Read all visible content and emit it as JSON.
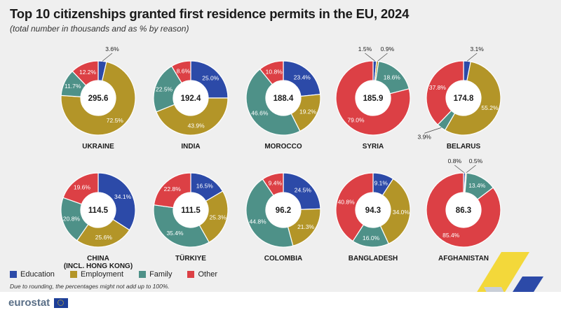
{
  "title": "Top 10 citizenships granted first residence permits in the EU, 2024",
  "subtitle": "(total number in thousands and as % by reason)",
  "note": "Due to rounding, the percentages might not add up to 100%.",
  "brand": "eurostat",
  "colors": {
    "Education": "#2c4aa8",
    "Employment": "#b39528",
    "Family": "#4e9188",
    "Other": "#dc4045"
  },
  "chart_data": {
    "type": "pie",
    "variant": "donut",
    "reasons": [
      "Education",
      "Employment",
      "Family",
      "Other"
    ],
    "series": [
      {
        "name": "Education",
        "color": "#2c4aa8"
      },
      {
        "name": "Employment",
        "color": "#b39528"
      },
      {
        "name": "Family",
        "color": "#4e9188"
      },
      {
        "name": "Other",
        "color": "#dc4045"
      }
    ],
    "charts": [
      {
        "country": "UKRAINE",
        "total": "295.6",
        "values": [
          3.6,
          72.5,
          11.7,
          12.2
        ],
        "labels": [
          "3.6%",
          "72.5%",
          "11.7%",
          "12.2%"
        ]
      },
      {
        "country": "INDIA",
        "total": "192.4",
        "values": [
          25.0,
          43.9,
          22.5,
          8.6
        ],
        "labels": [
          "25.0%",
          "43.9%",
          "22.5%",
          "8.6%"
        ]
      },
      {
        "country": "MOROCCO",
        "total": "188.4",
        "values": [
          23.4,
          19.2,
          46.6,
          10.8
        ],
        "labels": [
          "23.4%",
          "19.2%",
          "46.6%",
          "10.8%"
        ]
      },
      {
        "country": "SYRIA",
        "total": "185.9",
        "values": [
          1.5,
          0.9,
          18.6,
          79.0
        ],
        "labels": [
          "1.5%",
          "0.9%",
          "18.6%",
          "79.0%"
        ]
      },
      {
        "country": "BELARUS",
        "total": "174.8",
        "values": [
          3.1,
          55.2,
          3.9,
          37.8
        ],
        "labels": [
          "3.1%",
          "55.2%",
          "3.9%",
          "37.8%"
        ]
      },
      {
        "country": "CHINA",
        "country_line2": "(INCL. HONG KONG)",
        "total": "114.5",
        "values": [
          34.1,
          25.6,
          20.8,
          19.6
        ],
        "labels": [
          "34.1%",
          "25.6%",
          "20.8%",
          "19.6%"
        ]
      },
      {
        "country": "TÜRKIYE",
        "total": "111.5",
        "values": [
          16.5,
          25.3,
          35.4,
          22.8
        ],
        "labels": [
          "16.5%",
          "25.3%",
          "35.4%",
          "22.8%"
        ]
      },
      {
        "country": "COLOMBIA",
        "total": "96.2",
        "values": [
          24.5,
          21.3,
          44.8,
          9.4
        ],
        "labels": [
          "24.5%",
          "21.3%",
          "44.8%",
          "9.4%"
        ]
      },
      {
        "country": "BANGLADESH",
        "total": "94.3",
        "values": [
          9.1,
          34.0,
          16.0,
          40.8
        ],
        "labels": [
          "9.1%",
          "34.0%",
          "16.0%",
          "40.8%"
        ]
      },
      {
        "country": "AFGHANISTAN",
        "total": "86.3",
        "values": [
          0.8,
          0.5,
          13.4,
          85.4
        ],
        "labels": [
          "0.8%",
          "0.5%",
          "13.4%",
          "85.4%"
        ]
      }
    ]
  }
}
